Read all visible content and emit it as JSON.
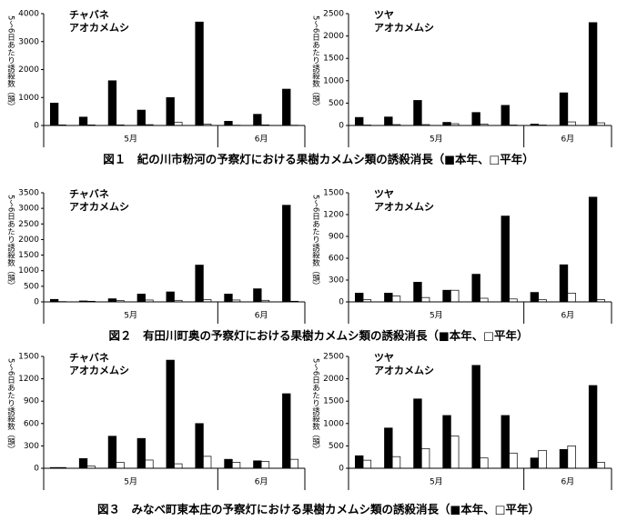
{
  "chart_data": [
    {
      "type": "bar",
      "title": [
        "チャバネ",
        "アオカメムシ"
      ],
      "y_label": "5～6日あたり誘殺数（頭）",
      "categories": [
        null,
        null,
        null,
        null,
        null,
        null,
        null,
        null,
        null
      ],
      "x_groups": [
        "5月",
        "6月"
      ],
      "ylim": [
        0,
        4000
      ],
      "yticks": [
        0,
        1000,
        2000,
        3000,
        4000
      ],
      "series": [
        {
          "color": "#000000",
          "values": [
            800,
            300,
            1600,
            550,
            1000,
            3700,
            150,
            400,
            1300
          ]
        },
        {
          "color": "#ffffff",
          "values": [
            20,
            20,
            20,
            30,
            120,
            50,
            10,
            20,
            10
          ]
        }
      ]
    },
    {
      "type": "bar",
      "title": [
        "ツヤ",
        "アオカメムシ"
      ],
      "y_label": "5～6日あたり誘殺数（頭）",
      "categories": [
        null,
        null,
        null,
        null,
        null,
        null,
        null,
        null,
        null
      ],
      "x_groups": [
        "5月",
        "6月"
      ],
      "ylim": [
        0,
        2500
      ],
      "yticks": [
        0,
        500,
        1000,
        1500,
        2000,
        2500
      ],
      "series": [
        {
          "color": "#000000",
          "values": [
            180,
            190,
            560,
            70,
            290,
            450,
            30,
            730,
            2300
          ]
        },
        {
          "color": "#ffffff",
          "values": [
            10,
            20,
            20,
            40,
            30,
            10,
            10,
            80,
            60
          ]
        }
      ]
    },
    {
      "type": "bar",
      "title": [
        "チャバネ",
        "アオカメムシ"
      ],
      "y_label": "5～6日あたり誘殺数（頭）",
      "categories": [
        null,
        null,
        null,
        null,
        null,
        null,
        null,
        null,
        null
      ],
      "x_groups": [
        "5月",
        "6月"
      ],
      "ylim": [
        0,
        3500
      ],
      "yticks": [
        0,
        500,
        1000,
        1500,
        2000,
        2500,
        3000,
        3500
      ],
      "series": [
        {
          "color": "#000000",
          "values": [
            80,
            30,
            100,
            250,
            320,
            1180,
            250,
            420,
            3100
          ]
        },
        {
          "color": "#ffffff",
          "values": [
            10,
            20,
            40,
            60,
            50,
            70,
            60,
            50,
            20
          ]
        }
      ]
    },
    {
      "type": "bar",
      "title": [
        "ツヤ",
        "アオカメムシ"
      ],
      "y_label": "5～6日あたり誘殺数（頭）",
      "categories": [
        null,
        null,
        null,
        null,
        null,
        null,
        null,
        null,
        null
      ],
      "x_groups": [
        "5月",
        "6月"
      ],
      "ylim": [
        0,
        1500
      ],
      "yticks": [
        0,
        300,
        600,
        900,
        1200,
        1500
      ],
      "series": [
        {
          "color": "#000000",
          "values": [
            120,
            120,
            270,
            160,
            380,
            1180,
            130,
            510,
            1440
          ]
        },
        {
          "color": "#ffffff",
          "values": [
            30,
            80,
            60,
            160,
            50,
            40,
            30,
            120,
            30
          ]
        }
      ]
    },
    {
      "type": "bar",
      "title": [
        "チャバネ",
        "アオカメムシ"
      ],
      "y_label": "5～6日あたり誘殺数（頭）",
      "categories": [
        null,
        null,
        null,
        null,
        null,
        null,
        null,
        null,
        null
      ],
      "x_groups": [
        "5月",
        "6月"
      ],
      "ylim": [
        0,
        1500
      ],
      "yticks": [
        0,
        300,
        600,
        900,
        1200,
        1500
      ],
      "series": [
        {
          "color": "#000000",
          "values": [
            10,
            130,
            430,
            400,
            1450,
            600,
            120,
            100,
            1000
          ]
        },
        {
          "color": "#ffffff",
          "values": [
            10,
            30,
            80,
            110,
            60,
            160,
            80,
            90,
            120
          ]
        }
      ]
    },
    {
      "type": "bar",
      "title": [
        "ツヤ",
        "アオカメムシ"
      ],
      "y_label": "5～6日あたり誘殺数（頭）",
      "categories": [
        null,
        null,
        null,
        null,
        null,
        null,
        null,
        null,
        null
      ],
      "x_groups": [
        "5月",
        "6月"
      ],
      "ylim": [
        0,
        2500
      ],
      "yticks": [
        0,
        500,
        1000,
        1500,
        2000,
        2500
      ],
      "series": [
        {
          "color": "#000000",
          "values": [
            280,
            900,
            1550,
            1180,
            2300,
            1180,
            230,
            420,
            1850
          ]
        },
        {
          "color": "#ffffff",
          "values": [
            180,
            260,
            440,
            720,
            230,
            340,
            400,
            500,
            130
          ]
        }
      ]
    }
  ],
  "captions": [
    "図１　紀の川市粉河の予察灯における果樹カメムシ類の誘殺消長（■本年、□平年）",
    "図２　有田川町奥の予察灯における果樹カメムシ類の誘殺消長（■本年、□平年）",
    "図３　みなべ町東本庄の予察灯における果樹カメムシ類の誘殺消長（■本年、□平年）"
  ]
}
